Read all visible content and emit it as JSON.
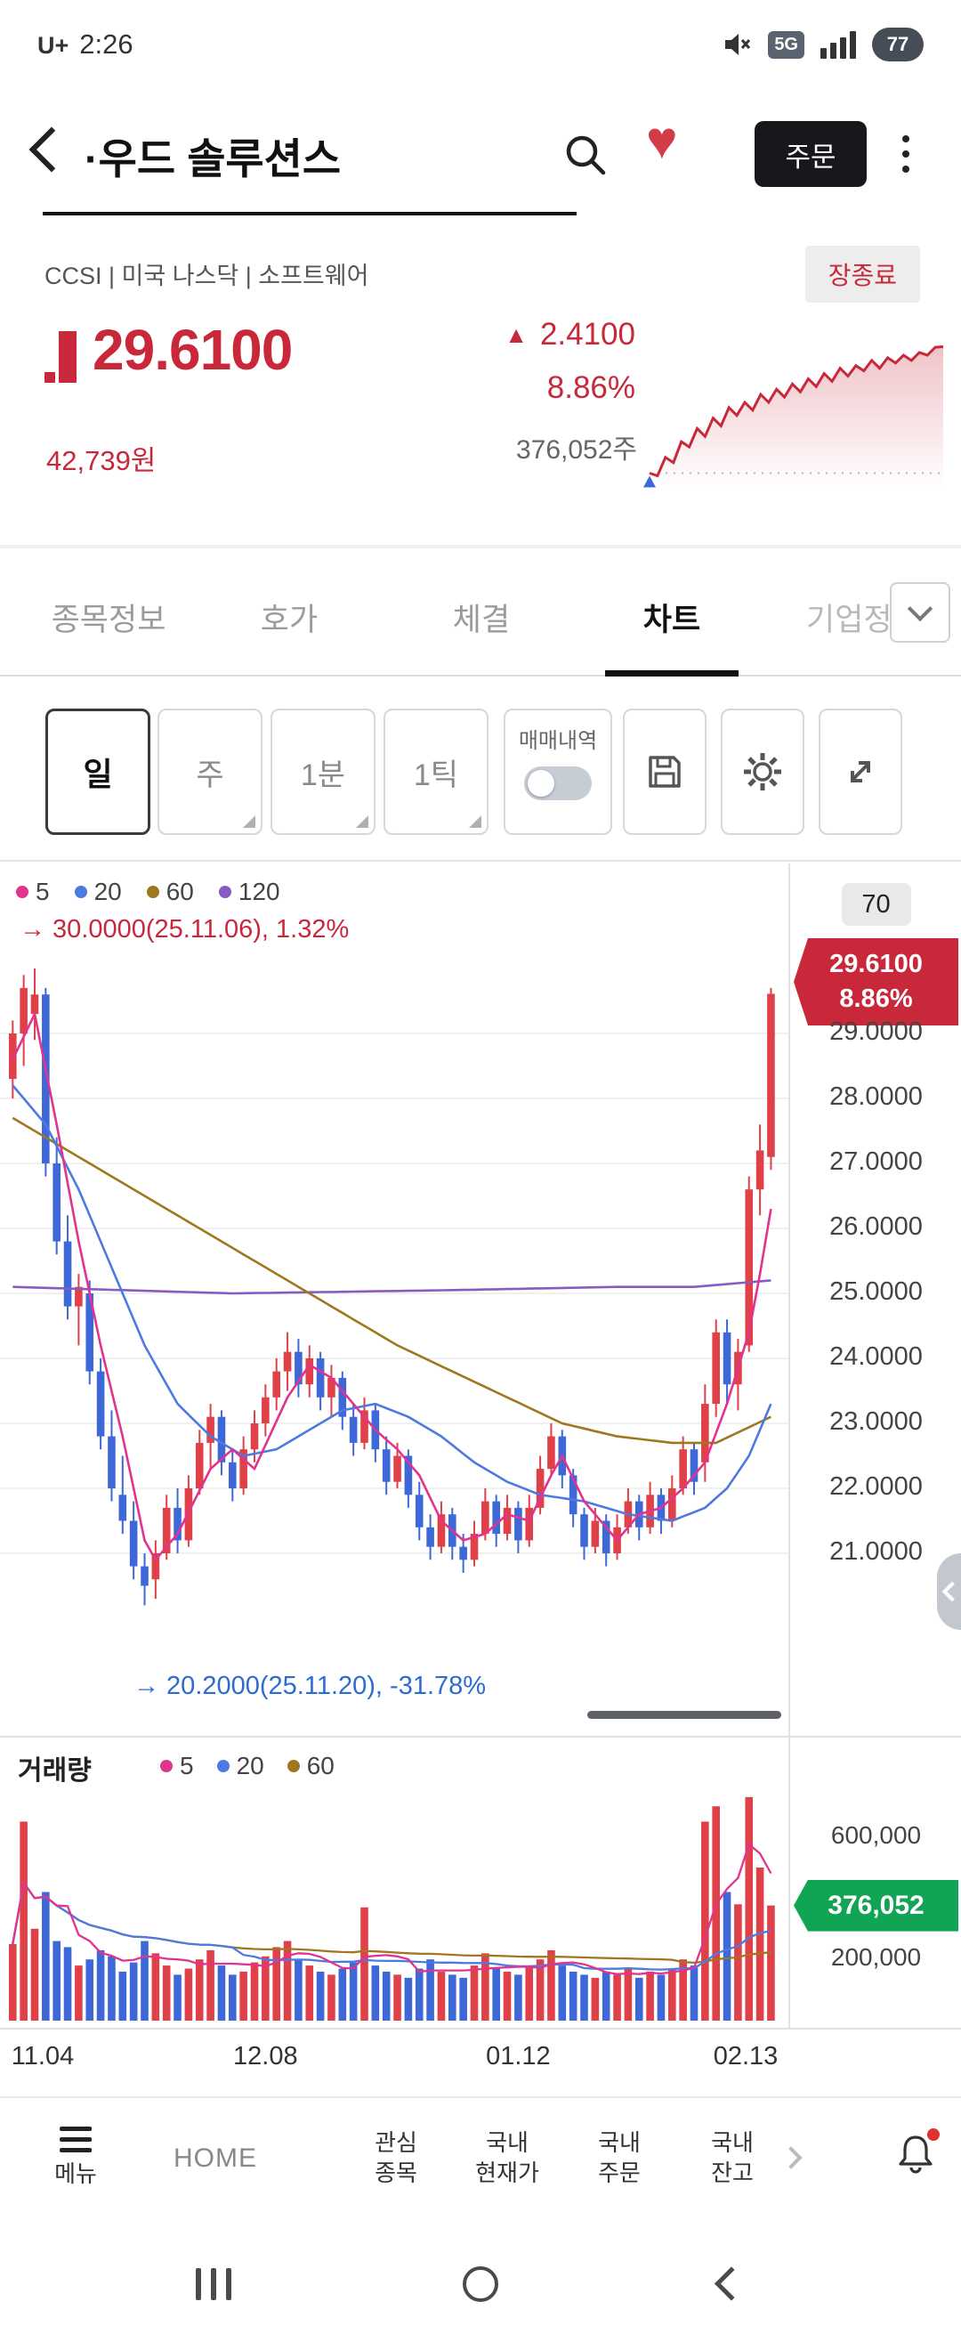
{
  "status_bar": {
    "carrier": "U+",
    "time": "2:26",
    "network": "5G",
    "battery": "77"
  },
  "header": {
    "title": "·우드 솔루션스",
    "order_button": "주문"
  },
  "stock": {
    "meta": "CCSI | 미국 나스닥 | 소프트웨어",
    "market_status": "장종료",
    "price": "29.6100",
    "up_arrow": "▲",
    "change": "2.4100",
    "change_pct": "8.86%",
    "price_krw": "42,739원",
    "volume_shares": "376,052주"
  },
  "tabs": {
    "items": [
      {
        "label": "종목정보"
      },
      {
        "label": "호가"
      },
      {
        "label": "체결"
      },
      {
        "label": "차트"
      },
      {
        "label": "기업정보"
      }
    ],
    "active_index": 3
  },
  "toolbar": {
    "periods": [
      "일",
      "주",
      "1분",
      "1틱"
    ],
    "active_period": "일",
    "trade_history_label": "매매내역",
    "toggle_state": "off"
  },
  "colors": {
    "red": "#c8283a",
    "candle_red": "#e04048",
    "candle_blue": "#3e68d8",
    "green": "#12a455",
    "ma5": "#e0348e",
    "ma20": "#4d7ae0",
    "ma60": "#a0771e",
    "ma120": "#8a5ac4"
  },
  "chart_data": {
    "type": "candlestick",
    "period": "일",
    "visible_candles": "70",
    "y_ticks": [
      29,
      28,
      27,
      26,
      25,
      24,
      23,
      22,
      21
    ],
    "x_ticks": [
      {
        "label": "11.04",
        "index": 0
      },
      {
        "label": "12.08",
        "index": 23
      },
      {
        "label": "01.12",
        "index": 46
      },
      {
        "label": "02.13",
        "index": 68
      }
    ],
    "current_price_badge": {
      "price": "29.6100",
      "pct": "8.86%"
    },
    "high_annotation": "→ 30.0000(25.11.06), 1.32%",
    "low_annotation": "→ 20.2000(25.11.20), -31.78%",
    "ma_legend": [
      {
        "period": "5",
        "color": "#e0348e"
      },
      {
        "period": "20",
        "color": "#4d7ae0"
      },
      {
        "period": "60",
        "color": "#a0771e"
      },
      {
        "period": "120",
        "color": "#8a5ac4"
      }
    ],
    "candles": [
      [
        28.3,
        29.2,
        28.0,
        29.0
      ],
      [
        29.0,
        29.9,
        28.5,
        29.7
      ],
      [
        29.3,
        30.0,
        28.9,
        29.6
      ],
      [
        29.6,
        29.7,
        26.8,
        27.0
      ],
      [
        27.0,
        27.4,
        25.6,
        25.8
      ],
      [
        25.8,
        26.2,
        24.6,
        24.8
      ],
      [
        24.8,
        25.3,
        24.2,
        25.1
      ],
      [
        25.0,
        25.2,
        23.6,
        23.8
      ],
      [
        23.8,
        24.0,
        22.6,
        22.8
      ],
      [
        22.8,
        23.2,
        21.8,
        22.0
      ],
      [
        21.9,
        22.5,
        21.3,
        21.5
      ],
      [
        21.5,
        21.8,
        20.6,
        20.8
      ],
      [
        20.8,
        21.0,
        20.2,
        20.5
      ],
      [
        20.6,
        21.2,
        20.3,
        21.0
      ],
      [
        21.0,
        21.9,
        20.9,
        21.7
      ],
      [
        21.7,
        22.0,
        21.0,
        21.2
      ],
      [
        21.2,
        22.2,
        21.1,
        22.0
      ],
      [
        22.0,
        22.9,
        21.9,
        22.7
      ],
      [
        22.7,
        23.3,
        22.3,
        23.1
      ],
      [
        23.1,
        23.2,
        22.2,
        22.4
      ],
      [
        22.4,
        22.6,
        21.8,
        22.0
      ],
      [
        22.0,
        22.8,
        21.9,
        22.6
      ],
      [
        22.6,
        23.2,
        22.4,
        23.0
      ],
      [
        23.0,
        23.6,
        22.8,
        23.4
      ],
      [
        23.4,
        24.0,
        23.2,
        23.8
      ],
      [
        23.8,
        24.4,
        23.5,
        24.1
      ],
      [
        24.1,
        24.3,
        23.4,
        23.6
      ],
      [
        23.6,
        24.2,
        23.4,
        24.0
      ],
      [
        24.0,
        24.1,
        23.2,
        23.4
      ],
      [
        23.4,
        23.9,
        23.1,
        23.7
      ],
      [
        23.7,
        23.8,
        22.9,
        23.1
      ],
      [
        23.1,
        23.3,
        22.5,
        22.7
      ],
      [
        22.7,
        23.4,
        22.6,
        23.2
      ],
      [
        23.2,
        23.3,
        22.4,
        22.6
      ],
      [
        22.6,
        22.8,
        21.9,
        22.1
      ],
      [
        22.1,
        22.7,
        22.0,
        22.5
      ],
      [
        22.5,
        22.6,
        21.7,
        21.9
      ],
      [
        21.9,
        22.1,
        21.2,
        21.4
      ],
      [
        21.4,
        21.6,
        20.9,
        21.1
      ],
      [
        21.1,
        21.8,
        21.0,
        21.6
      ],
      [
        21.6,
        21.7,
        20.9,
        21.1
      ],
      [
        21.1,
        21.3,
        20.7,
        20.9
      ],
      [
        20.9,
        21.5,
        20.8,
        21.3
      ],
      [
        21.3,
        22.0,
        21.2,
        21.8
      ],
      [
        21.8,
        21.9,
        21.1,
        21.3
      ],
      [
        21.3,
        21.9,
        21.2,
        21.7
      ],
      [
        21.7,
        21.8,
        21.0,
        21.2
      ],
      [
        21.2,
        21.9,
        21.1,
        21.7
      ],
      [
        21.7,
        22.5,
        21.6,
        22.3
      ],
      [
        22.3,
        23.0,
        22.2,
        22.8
      ],
      [
        22.8,
        22.9,
        22.0,
        22.2
      ],
      [
        22.2,
        22.3,
        21.4,
        21.6
      ],
      [
        21.6,
        21.7,
        20.9,
        21.1
      ],
      [
        21.1,
        21.7,
        21.0,
        21.5
      ],
      [
        21.5,
        21.6,
        20.8,
        21.0
      ],
      [
        21.0,
        21.6,
        20.9,
        21.4
      ],
      [
        21.4,
        22.0,
        21.3,
        21.8
      ],
      [
        21.8,
        21.9,
        21.2,
        21.4
      ],
      [
        21.4,
        22.1,
        21.3,
        21.9
      ],
      [
        21.9,
        22.0,
        21.3,
        21.5
      ],
      [
        21.5,
        22.2,
        21.4,
        22.0
      ],
      [
        22.0,
        22.8,
        21.9,
        22.6
      ],
      [
        22.6,
        22.7,
        21.9,
        22.1
      ],
      [
        22.4,
        23.6,
        22.1,
        23.3
      ],
      [
        23.3,
        24.6,
        23.1,
        24.4
      ],
      [
        24.4,
        24.6,
        23.3,
        23.6
      ],
      [
        23.6,
        24.3,
        23.2,
        24.1
      ],
      [
        24.2,
        26.8,
        24.1,
        26.6
      ],
      [
        26.6,
        27.6,
        26.2,
        27.2
      ],
      [
        27.1,
        29.7,
        26.9,
        29.61
      ]
    ],
    "volumes": [
      250000,
      650000,
      300000,
      420000,
      260000,
      240000,
      180000,
      200000,
      230000,
      210000,
      160000,
      190000,
      260000,
      220000,
      180000,
      150000,
      170000,
      200000,
      230000,
      180000,
      150000,
      160000,
      190000,
      210000,
      240000,
      260000,
      200000,
      180000,
      160000,
      150000,
      170000,
      190000,
      370000,
      180000,
      160000,
      150000,
      140000,
      170000,
      200000,
      160000,
      150000,
      140000,
      180000,
      220000,
      170000,
      160000,
      150000,
      180000,
      200000,
      230000,
      180000,
      160000,
      150000,
      140000,
      160000,
      150000,
      170000,
      140000,
      160000,
      150000,
      170000,
      200000,
      180000,
      650000,
      700000,
      420000,
      380000,
      730000,
      500000,
      376052
    ],
    "ma_keyframes": {
      "ma5": [
        [
          0,
          28.6
        ],
        [
          2,
          29.3
        ],
        [
          4,
          27.6
        ],
        [
          6,
          25.8
        ],
        [
          8,
          24.2
        ],
        [
          10,
          22.8
        ],
        [
          12,
          21.2
        ],
        [
          13,
          20.9
        ],
        [
          15,
          21.3
        ],
        [
          18,
          22.3
        ],
        [
          20,
          22.6
        ],
        [
          22,
          22.3
        ],
        [
          25,
          23.4
        ],
        [
          27,
          23.9
        ],
        [
          29,
          23.7
        ],
        [
          31,
          23.3
        ],
        [
          33,
          22.9
        ],
        [
          35,
          22.6
        ],
        [
          37,
          22.2
        ],
        [
          39,
          21.5
        ],
        [
          41,
          21.2
        ],
        [
          43,
          21.3
        ],
        [
          45,
          21.6
        ],
        [
          47,
          21.5
        ],
        [
          49,
          22.2
        ],
        [
          50,
          22.5
        ],
        [
          52,
          21.8
        ],
        [
          55,
          21.2
        ],
        [
          57,
          21.6
        ],
        [
          59,
          21.7
        ],
        [
          61,
          22.0
        ],
        [
          63,
          22.4
        ],
        [
          65,
          23.3
        ],
        [
          67,
          24.4
        ],
        [
          68,
          25.3
        ],
        [
          69,
          26.3
        ]
      ],
      "ma20": [
        [
          0,
          28.2
        ],
        [
          3,
          27.6
        ],
        [
          6,
          26.6
        ],
        [
          9,
          25.4
        ],
        [
          12,
          24.2
        ],
        [
          15,
          23.3
        ],
        [
          18,
          22.8
        ],
        [
          21,
          22.5
        ],
        [
          24,
          22.6
        ],
        [
          27,
          22.9
        ],
        [
          30,
          23.2
        ],
        [
          33,
          23.3
        ],
        [
          36,
          23.1
        ],
        [
          39,
          22.8
        ],
        [
          42,
          22.4
        ],
        [
          45,
          22.1
        ],
        [
          48,
          21.9
        ],
        [
          52,
          21.8
        ],
        [
          56,
          21.6
        ],
        [
          60,
          21.5
        ],
        [
          63,
          21.7
        ],
        [
          65,
          22.0
        ],
        [
          67,
          22.5
        ],
        [
          69,
          23.3
        ]
      ],
      "ma60": [
        [
          0,
          27.7
        ],
        [
          5,
          27.2
        ],
        [
          10,
          26.7
        ],
        [
          15,
          26.2
        ],
        [
          20,
          25.7
        ],
        [
          25,
          25.2
        ],
        [
          30,
          24.7
        ],
        [
          35,
          24.2
        ],
        [
          40,
          23.8
        ],
        [
          45,
          23.4
        ],
        [
          50,
          23.0
        ],
        [
          55,
          22.8
        ],
        [
          60,
          22.7
        ],
        [
          64,
          22.7
        ],
        [
          69,
          23.1
        ]
      ],
      "ma120": [
        [
          0,
          25.1
        ],
        [
          20,
          25.0
        ],
        [
          40,
          25.05
        ],
        [
          55,
          25.1
        ],
        [
          62,
          25.1
        ],
        [
          69,
          25.2
        ]
      ]
    },
    "volume_pane": {
      "label": "거래량",
      "ma_legend": [
        {
          "period": "5",
          "color": "#e0348e"
        },
        {
          "period": "20",
          "color": "#4d7ae0"
        },
        {
          "period": "60",
          "color": "#a0771e"
        }
      ],
      "y_ticks": [
        {
          "label": "600,000",
          "value": 600000
        },
        {
          "label": "200,000",
          "value": 200000
        }
      ],
      "current_badge": {
        "label": "376,052",
        "value": 376052
      },
      "ymax": 750000
    },
    "sparkline": {
      "baseline": 27.2,
      "points": [
        27.2,
        27.15,
        27.5,
        27.4,
        27.8,
        27.7,
        28.05,
        27.9,
        28.25,
        28.1,
        28.45,
        28.3,
        28.55,
        28.4,
        28.7,
        28.55,
        28.8,
        28.65,
        28.9,
        28.75,
        29.0,
        28.85,
        29.1,
        28.95,
        29.2,
        29.05,
        29.25,
        29.15,
        29.35,
        29.2,
        29.4,
        29.3,
        29.45,
        29.35,
        29.5,
        29.45,
        29.6,
        29.61
      ]
    }
  },
  "bottom_nav": {
    "items": [
      {
        "label": "메뉴"
      },
      {
        "label": "HOME"
      },
      {
        "label": "관심\n종목"
      },
      {
        "label": "국내\n현재가"
      },
      {
        "label": "국내\n주문"
      },
      {
        "label": "국내\n잔고"
      }
    ]
  }
}
